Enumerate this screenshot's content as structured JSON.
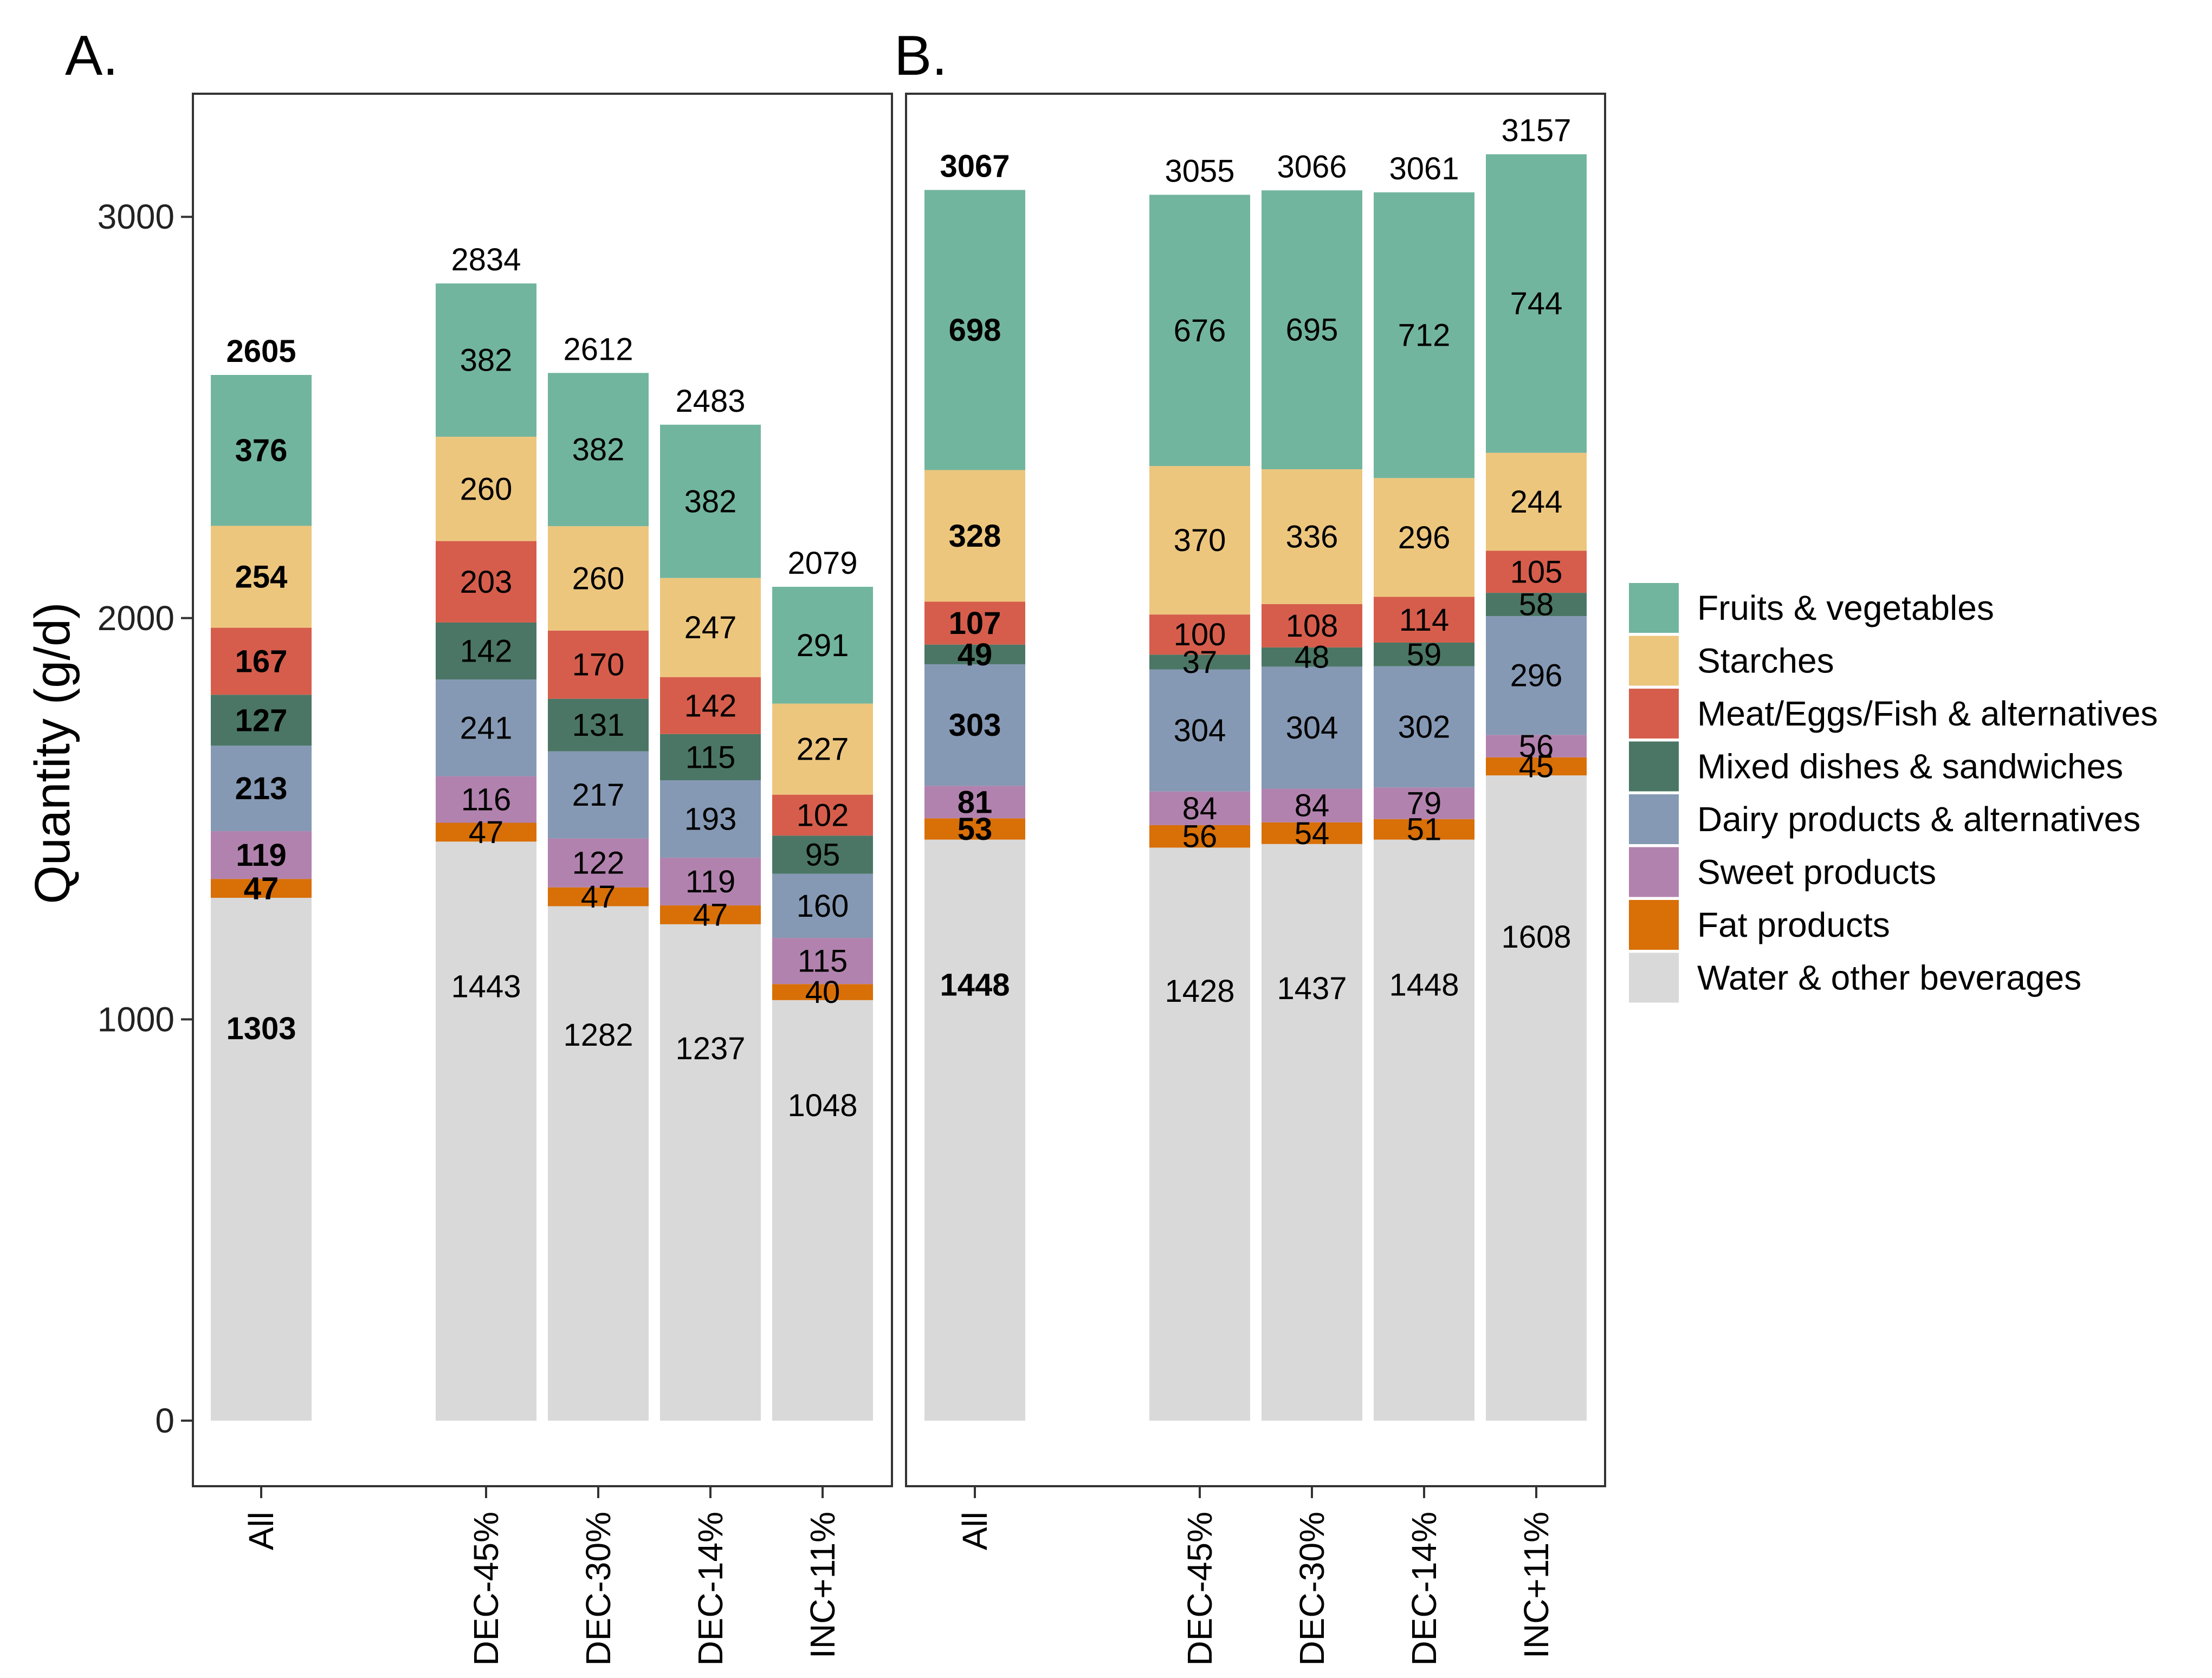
{
  "chart_data": {
    "type": "bar",
    "stacked": true,
    "ylabel": "Quantity (g/d)",
    "ylim": [
      0,
      3300
    ],
    "yticks": [
      0,
      1000,
      2000,
      3000
    ],
    "series_order": [
      "Water & other beverages",
      "Fat products",
      "Sweet products",
      "Dairy products & alternatives",
      "Mixed dishes & sandwiches",
      "Meat/Eggs/Fish & alternatives",
      "Starches",
      "Fruits & vegetables"
    ],
    "legend": [
      {
        "name": "Fruits & vegetables",
        "color": "#72b59e"
      },
      {
        "name": "Starches",
        "color": "#edc67e"
      },
      {
        "name": "Meat/Eggs/Fish & alternatives",
        "color": "#d65d4c"
      },
      {
        "name": "Mixed dishes & sandwiches",
        "color": "#4b7665"
      },
      {
        "name": "Dairy products & alternatives",
        "color": "#8599b4"
      },
      {
        "name": "Sweet products",
        "color": "#b282ae"
      },
      {
        "name": "Fat products",
        "color": "#d86f07"
      },
      {
        "name": "Water & other beverages",
        "color": "#d9d9d9"
      }
    ],
    "legend_position": "right",
    "panels": [
      {
        "label": "A.",
        "categories": [
          "All",
          "DEC-45%",
          "DEC-30%",
          "DEC-14%",
          "INC+11%"
        ],
        "bold_categories": [
          "All"
        ],
        "totals": [
          "2605",
          "2834",
          "2612",
          "2483",
          "2079"
        ],
        "series": [
          {
            "name": "Water & other beverages",
            "values": [
              1303,
              1443,
              1282,
              1237,
              1048
            ]
          },
          {
            "name": "Fat products",
            "values": [
              47,
              47,
              47,
              47,
              40
            ]
          },
          {
            "name": "Sweet products",
            "values": [
              119,
              116,
              122,
              119,
              115
            ]
          },
          {
            "name": "Dairy products & alternatives",
            "values": [
              213,
              241,
              217,
              193,
              160
            ]
          },
          {
            "name": "Mixed dishes & sandwiches",
            "values": [
              127,
              142,
              131,
              115,
              95
            ]
          },
          {
            "name": "Meat/Eggs/Fish & alternatives",
            "values": [
              167,
              203,
              170,
              142,
              102
            ]
          },
          {
            "name": "Starches",
            "values": [
              254,
              260,
              260,
              247,
              227
            ]
          },
          {
            "name": "Fruits & vegetables",
            "values": [
              376,
              382,
              382,
              382,
              291
            ]
          }
        ],
        "labels": [
          [
            "1303",
            "47",
            "119",
            "213",
            "127",
            "167",
            "254",
            "376"
          ],
          [
            "1443",
            "47",
            "116",
            "241",
            "142",
            "203",
            "260",
            "382"
          ],
          [
            "1282",
            "47",
            "122",
            "217",
            "131",
            "170",
            "260",
            "382"
          ],
          [
            "1237",
            "47",
            "119",
            "193",
            "115",
            "142",
            "247",
            "382"
          ],
          [
            "1048",
            "40",
            "115",
            "160",
            "95",
            "102",
            "227",
            "291"
          ]
        ]
      },
      {
        "label": "B.",
        "categories": [
          "All",
          "DEC-45%",
          "DEC-30%",
          "DEC-14%",
          "INC+11%"
        ],
        "bold_categories": [
          "All"
        ],
        "totals": [
          "3067",
          "3055",
          "3066",
          "3061",
          "3157"
        ],
        "series": [
          {
            "name": "Water & other beverages",
            "values": [
              1448,
              1428,
              1437,
              1448,
              1608
            ]
          },
          {
            "name": "Fat products",
            "values": [
              53,
              56,
              54,
              51,
              45
            ]
          },
          {
            "name": "Sweet products",
            "values": [
              81,
              84,
              84,
              79,
              56
            ]
          },
          {
            "name": "Dairy products & alternatives",
            "values": [
              303,
              304,
              304,
              302,
              296
            ]
          },
          {
            "name": "Mixed dishes & sandwiches",
            "values": [
              49,
              37,
              48,
              59,
              58
            ]
          },
          {
            "name": "Meat/Eggs/Fish & alternatives",
            "values": [
              107,
              100,
              108,
              114,
              105
            ]
          },
          {
            "name": "Starches",
            "values": [
              328,
              370,
              336,
              296,
              244
            ]
          },
          {
            "name": "Fruits & vegetables",
            "values": [
              698,
              676,
              695,
              712,
              744
            ]
          }
        ],
        "labels": [
          [
            "1448",
            "53",
            "81",
            "303",
            "49",
            "107",
            "328",
            "698"
          ],
          [
            "1428",
            "56",
            "84",
            "304",
            "37",
            "100",
            "370",
            "676"
          ],
          [
            "1437",
            "54",
            "84",
            "304",
            "48",
            "108",
            "336",
            "695"
          ],
          [
            "1448",
            "51",
            "79",
            "302",
            "59",
            "114",
            "296",
            "712"
          ],
          [
            "1608",
            "45",
            "56",
            "296",
            "58",
            "105",
            "244",
            "744"
          ]
        ]
      }
    ]
  }
}
